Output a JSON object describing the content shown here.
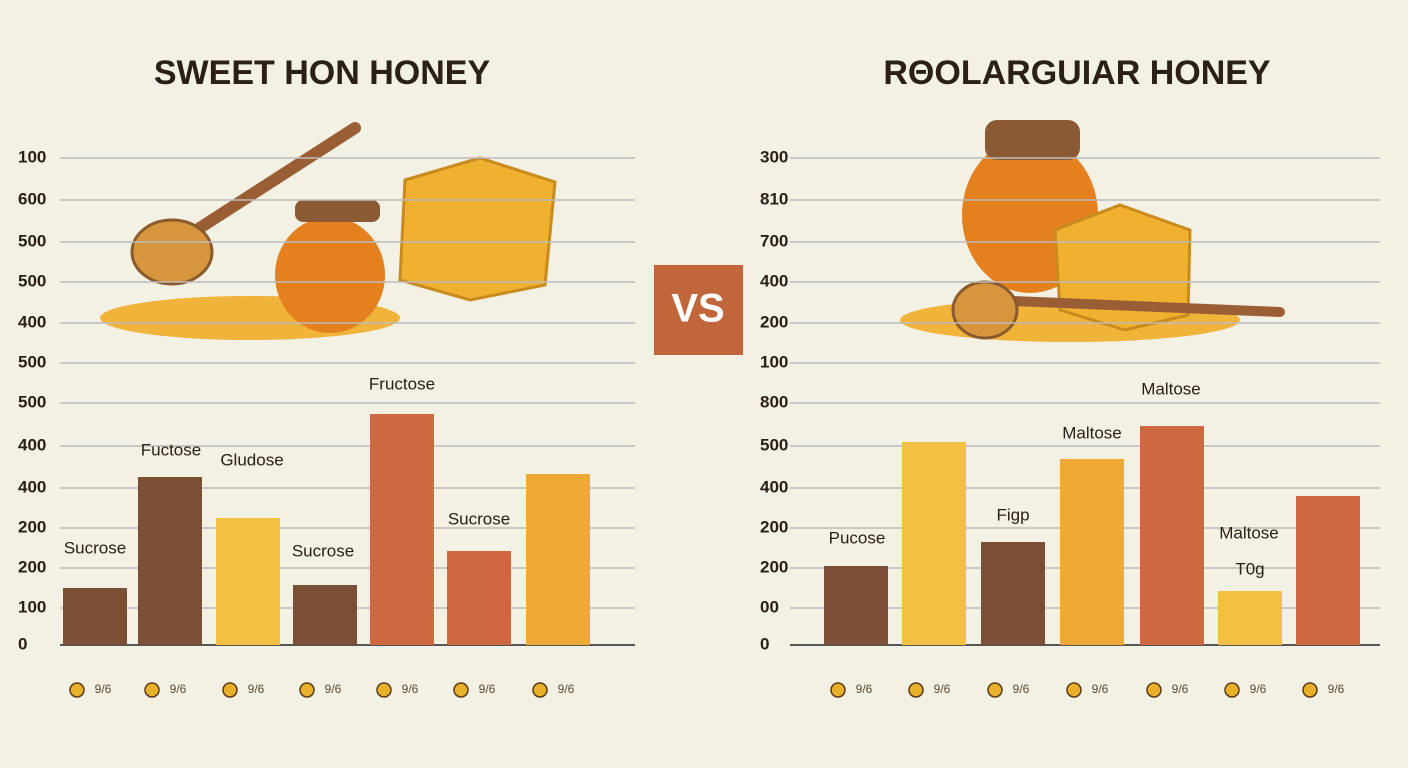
{
  "left": {
    "title": "SWEET HON HONEY",
    "axis_labels": [
      "100",
      "600",
      "500",
      "500",
      "400",
      "500",
      "500",
      "400",
      "400",
      "200",
      "200",
      "100",
      "0"
    ],
    "bars": [
      {
        "label": "Sucrose",
        "color": "#7a4f35"
      },
      {
        "label": "Fuctose",
        "color": "#7a4f35"
      },
      {
        "label": "Gludose",
        "color": "#f2c043"
      },
      {
        "label": "Sucrose",
        "color": "#7a4f35"
      },
      {
        "label": "Fructose",
        "color": "#d0683f"
      },
      {
        "label": "Sucrose",
        "color": "#d0683f"
      },
      {
        "color": "#eeaa35"
      }
    ],
    "x_labels": [
      "9/6",
      "9/6",
      "9/6",
      "9/6",
      "9/6",
      "9/6",
      "9/6"
    ]
  },
  "vs": "VS",
  "right": {
    "title": "RΘOLARGUIAR HONEY",
    "axis_labels": [
      "300",
      "810",
      "700",
      "400",
      "200",
      "100",
      "800",
      "500",
      "400",
      "200",
      "200",
      "00",
      "0"
    ],
    "bars": [
      {
        "label": "Pucose",
        "color": "#7a4f35"
      },
      {
        "color": "#f2c043"
      },
      {
        "label": "Figp",
        "color": "#7a4f35"
      },
      {
        "label": "Maltose",
        "color": "#eeaa35"
      },
      {
        "label": "Maltose",
        "color": "#d0683f"
      },
      {
        "label": "Maltose",
        "note": "T0g",
        "color": "#f2c043"
      },
      {
        "color": "#d0683f"
      }
    ],
    "x_labels": [
      "9/6",
      "9/6",
      "9/6",
      "9/6",
      "9/6",
      "9/6",
      "9/6"
    ]
  }
}
